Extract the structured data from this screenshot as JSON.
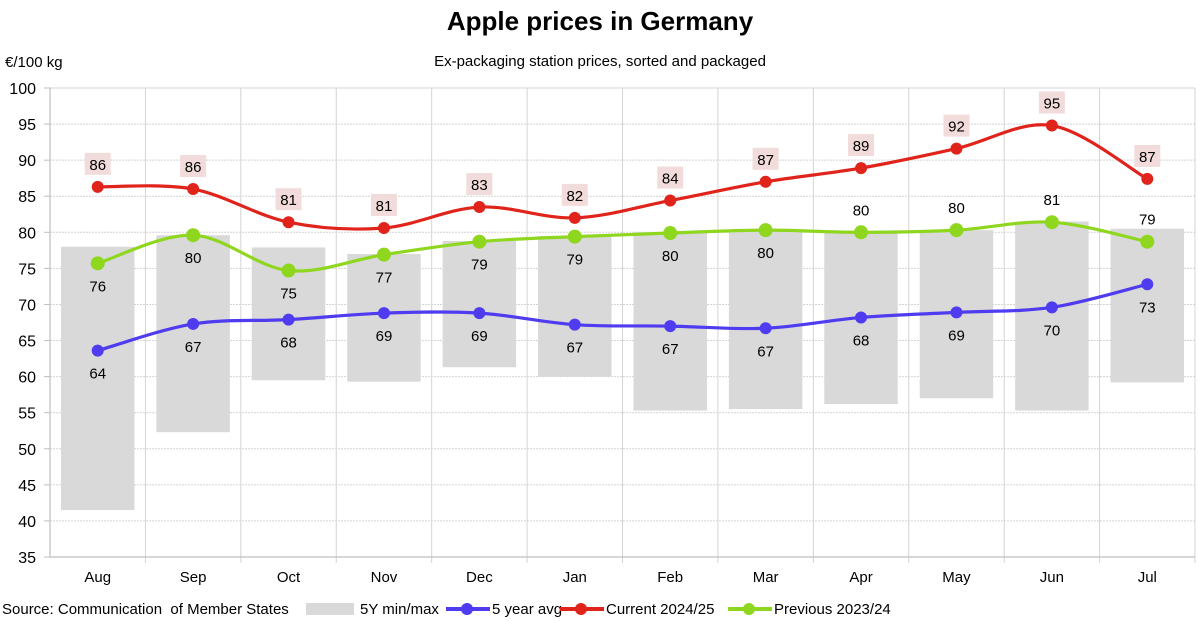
{
  "chart_data": {
    "type": "line",
    "title": "Apple prices in Germany",
    "subtitle": "Ex-packaging station prices, sorted and packaged",
    "ylabel": "€/100 kg",
    "xlabel": "",
    "ylim": [
      35,
      100
    ],
    "yticks": [
      35,
      40,
      45,
      50,
      55,
      60,
      65,
      70,
      75,
      80,
      85,
      90,
      95,
      100
    ],
    "grid": true,
    "categories": [
      "Aug",
      "Sep",
      "Oct",
      "Nov",
      "Dec",
      "Jan",
      "Feb",
      "Mar",
      "Apr",
      "May",
      "Jun",
      "Jul"
    ],
    "range": {
      "name": "5Y min/max",
      "color": "#d9d9d9",
      "min": [
        41.5,
        52.3,
        59.5,
        59.3,
        61.3,
        60.0,
        55.3,
        55.5,
        56.2,
        57.0,
        55.3,
        59.2
      ],
      "max": [
        78.0,
        79.6,
        77.9,
        77.0,
        78.8,
        79.5,
        80.0,
        80.3,
        80.0,
        80.3,
        81.5,
        80.5
      ]
    },
    "series": [
      {
        "name": "5 year avg",
        "color": "#4f3bf0",
        "values": [
          63.6,
          67.3,
          67.9,
          68.8,
          68.8,
          67.2,
          67.0,
          66.7,
          68.2,
          68.9,
          69.6,
          72.8
        ],
        "labels": [
          "64",
          "67",
          "68",
          "69",
          "69",
          "67",
          "67",
          "67",
          "68",
          "69",
          "70",
          "73"
        ],
        "label_position": "below"
      },
      {
        "name": "Current 2024/25",
        "color": "#e0241b",
        "values": [
          86.3,
          86.0,
          81.4,
          80.6,
          83.5,
          82.0,
          84.4,
          87.0,
          88.9,
          91.6,
          94.8,
          87.4
        ],
        "labels": [
          "86",
          "86",
          "81",
          "81",
          "83",
          "82",
          "84",
          "87",
          "89",
          "92",
          "95",
          "87"
        ],
        "label_position": "above-boxed",
        "label_bg": "#f2dcdb"
      },
      {
        "name": "Previous 2023/24",
        "color": "#8fd61f",
        "values": [
          75.7,
          79.6,
          74.7,
          76.9,
          78.7,
          79.4,
          79.9,
          80.3,
          80.0,
          80.3,
          81.4,
          78.7
        ],
        "labels": [
          "76",
          "80",
          "75",
          "77",
          "79",
          "79",
          "80",
          "80",
          "80",
          "80",
          "81",
          "79"
        ],
        "label_position": [
          "below",
          "below",
          "below",
          "below",
          "below",
          "below",
          "below",
          "below",
          "above",
          "above",
          "above",
          "above"
        ]
      }
    ],
    "legend": {
      "position": "bottom",
      "entries": [
        "5Y min/max",
        "5 year avg",
        "Current 2024/25",
        "Previous 2023/24"
      ]
    },
    "source": "Source: Communication  of Member States"
  }
}
